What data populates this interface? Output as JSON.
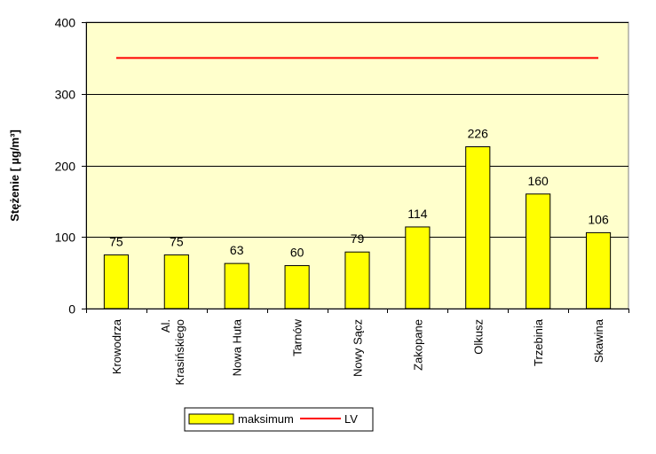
{
  "chart_data": {
    "type": "bar",
    "title": "",
    "xlabel": "",
    "ylabel": "Stężenie [ µg/m³]",
    "ylim": [
      0,
      400
    ],
    "yticks": [
      0,
      100,
      200,
      300,
      400
    ],
    "grid": true,
    "categories": [
      "Krowodrza",
      "Al. Krasińskiego",
      "Nowa Huta",
      "Tarnów",
      "Nowy Sącz",
      "Zakopane",
      "Olkusz",
      "Trzebinia",
      "Skawina"
    ],
    "series": [
      {
        "name": "maksimum",
        "values": [
          75,
          75,
          63,
          60,
          79,
          114,
          226,
          160,
          106
        ],
        "color": "#ffff00"
      }
    ],
    "reference_line": {
      "name": "LV",
      "value": 350,
      "color": "#ff0000"
    },
    "legend_position": "bottom-center",
    "plot_background": "#ffffcc"
  }
}
